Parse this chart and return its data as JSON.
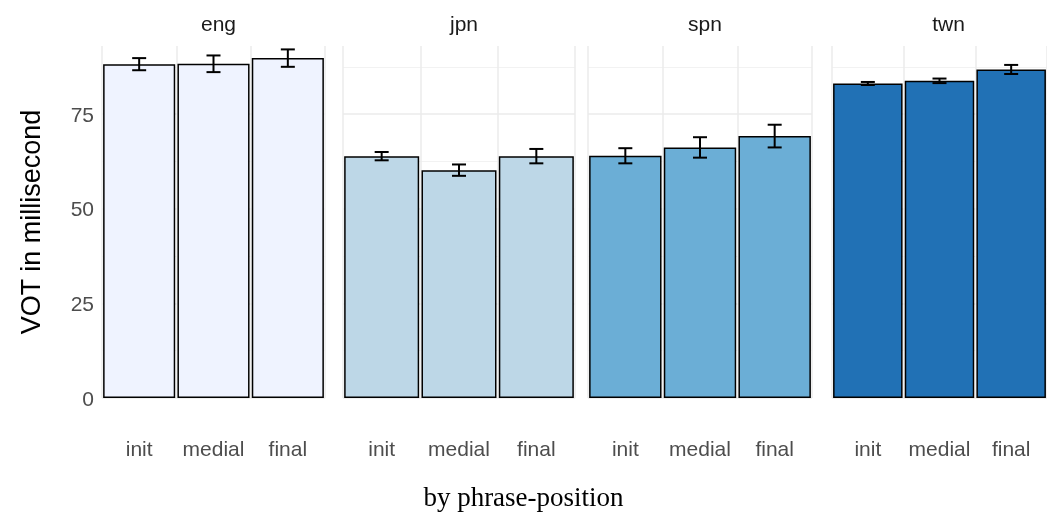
{
  "chart_data": [
    {
      "type": "bar",
      "title": "eng",
      "ylabel": "VOT in millisecond",
      "xlabel": "by phrase-position",
      "categories": [
        "init",
        "medial",
        "final"
      ],
      "series": [
        {
          "color": "#eff3ff",
          "values": [
            88.2,
            88.3,
            89.8
          ],
          "errors": [
            1.6,
            2.2,
            2.3
          ]
        }
      ],
      "ylim": [
        0,
        93
      ],
      "yticks": [
        0,
        25,
        50,
        75
      ],
      "grid": true
    },
    {
      "type": "bar",
      "title": "jpn",
      "categories": [
        "init",
        "medial",
        "final"
      ],
      "series": [
        {
          "color": "#bdd7e7",
          "values": [
            63.9,
            60.2,
            63.9
          ],
          "errors": [
            1.1,
            1.5,
            1.9
          ]
        }
      ],
      "ylim": [
        0,
        93
      ],
      "yticks": [
        0,
        25,
        50,
        75
      ],
      "grid": true,
      "tick_labels": "x"
    },
    {
      "type": "bar",
      "title": "spn",
      "categories": [
        "init",
        "medial",
        "final"
      ],
      "series": [
        {
          "color": "#6baed6",
          "values": [
            64.0,
            66.2,
            69.2
          ],
          "errors": [
            2.0,
            2.7,
            3.0
          ]
        }
      ],
      "ylim": [
        0,
        93
      ],
      "yticks": [
        0,
        25,
        50,
        75
      ],
      "grid": true,
      "tick_labels": "x"
    },
    {
      "type": "bar",
      "title": "twn",
      "categories": [
        "init",
        "medial",
        "final"
      ],
      "series": [
        {
          "color": "#2171b5",
          "values": [
            83.1,
            83.8,
            86.8
          ],
          "errors": [
            0.4,
            0.6,
            1.2
          ]
        }
      ],
      "ylim": [
        0,
        93
      ],
      "yticks": [
        0,
        25,
        50,
        75
      ],
      "grid": true,
      "tick_labels": "x"
    }
  ]
}
